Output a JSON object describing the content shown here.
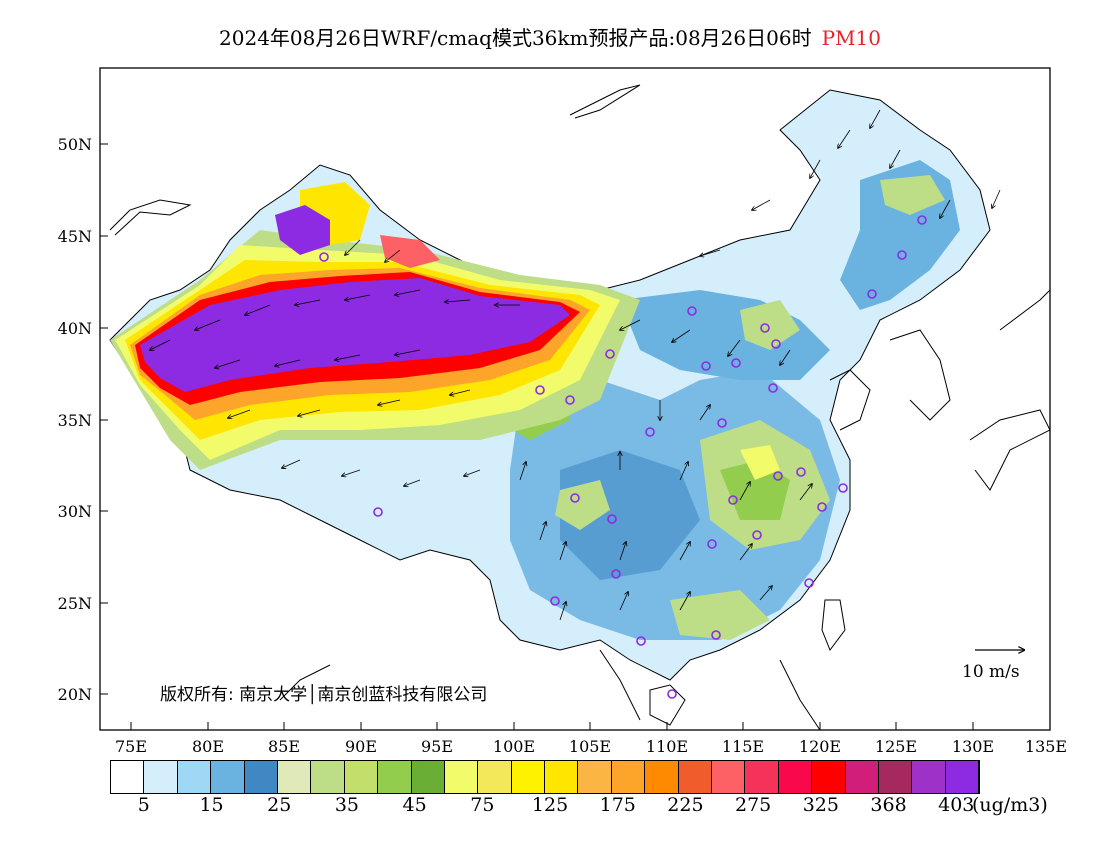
{
  "title": {
    "main": "2024年08月26日WRF/cmaq模式36km预报产品:08月26日06时",
    "variable": "PM10",
    "variable_color": "#e8212b"
  },
  "axes": {
    "lon_ticks": [
      "75E",
      "80E",
      "85E",
      "90E",
      "95E",
      "100E",
      "105E",
      "110E",
      "115E",
      "120E",
      "125E",
      "130E",
      "135E"
    ],
    "lat_ticks": [
      "50N",
      "45N",
      "40N",
      "35N",
      "30N",
      "25N",
      "20N"
    ]
  },
  "colorbar": {
    "colors": [
      "#ffffff",
      "#d5eefc",
      "#9fd8f4",
      "#6ab2e0",
      "#3f88c4",
      "#dfeab8",
      "#bedd87",
      "#c2df6c",
      "#93cd4e",
      "#6aae35",
      "#f2fb6a",
      "#f3e85a",
      "#fef200",
      "#fee600",
      "#fbb545",
      "#fda52a",
      "#fd8a00",
      "#f05c2c",
      "#fd6165",
      "#f53259",
      "#f9094b",
      "#fe0000",
      "#d11e7a",
      "#a5295e",
      "#9e31c8",
      "#8c2be2"
    ],
    "labels": [
      "5",
      "15",
      "25",
      "35",
      "45",
      "75",
      "125",
      "175",
      "225",
      "275",
      "325",
      "368",
      "403"
    ],
    "unit": "(ug/m3)"
  },
  "wind_scale": {
    "label": "10 m/s"
  },
  "copyright": "版权所有: 南京大学│南京创蓝科技有限公司",
  "icons": {
    "station_marker": "station-circle-icon",
    "wind_arrow": "wind-vector-icon"
  }
}
